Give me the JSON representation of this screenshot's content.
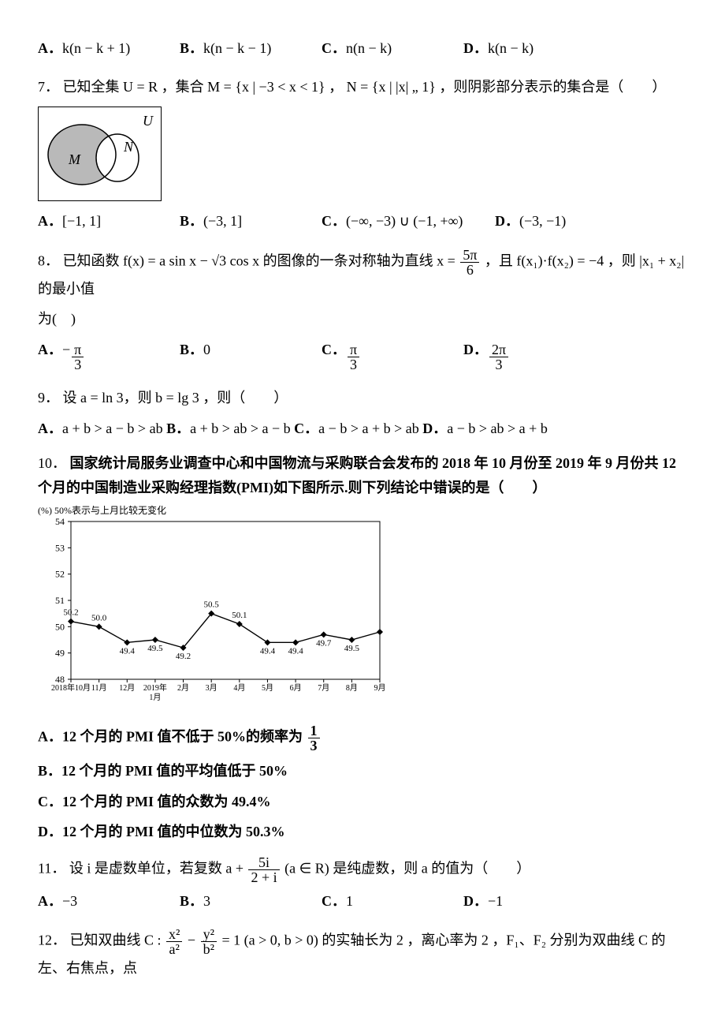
{
  "q6": {
    "opts": {
      "A": "k(n − k + 1)",
      "B": "k(n − k − 1)",
      "C": "n(n − k)",
      "D": "k(n − k)"
    },
    "opt_widths": [
      180,
      180,
      180,
      160
    ]
  },
  "q7": {
    "num": "7．",
    "stem_a": "已知全集",
    "U": "U = R",
    "stem_b": "，集合",
    "M": "M = {x | −3 < x < 1}",
    "comma": "，",
    "N": "N = {x | |x| „ 1}",
    "stem_c": "，则阴影部分表示的集合是（　　）",
    "venn": {
      "U": "U",
      "M": "M",
      "N": "N"
    },
    "opts": {
      "A": "[−1, 1]",
      "B": "(−3, 1]",
      "C": "(−∞, −3) ∪ (−1, +∞)",
      "D": "(−3, −1)"
    },
    "opt_widths": [
      180,
      180,
      220,
      140
    ]
  },
  "q8": {
    "num": "8．",
    "stem_a": "已知函数",
    "fx": "f(x) = a sin x − √3 cos x",
    "stem_b": "的图像的一条对称轴为直线",
    "xeq": "x = ",
    "frac": {
      "n": "5π",
      "d": "6"
    },
    "stem_c": "，且",
    "cond": "f(x₁)·f(x₂) = −4",
    "stem_d": "，则",
    "abs": "|x₁ + x₂|",
    "stem_e": "的最小值",
    "line2": "为(　)",
    "opts": {
      "A": {
        "pre": "−",
        "n": "π",
        "d": "3"
      },
      "B": "0",
      "C": {
        "n": "π",
        "d": "3"
      },
      "D": {
        "n": "2π",
        "d": "3"
      }
    },
    "opt_widths": [
      180,
      180,
      180,
      160
    ]
  },
  "q9": {
    "num": "9．",
    "stem": "设 a = ln 3，则 b = lg 3 ，则（　　）",
    "opts": {
      "A": "a + b > a − b > ab",
      "B": "a + b > ab > a − b",
      "C": "a − b > a + b > ab",
      "D": "a − b > ab > a + b"
    }
  },
  "q10": {
    "num": "10．",
    "stem": "国家统计局服务业调查中心和中国物流与采购联合会发布的 2018 年 10 月份至 2019 年 9 月份共 12 个月的中国制造业采购经理指数(PMI)如下图所示.则下列结论中错误的是（　　）",
    "chart": {
      "ylabel": "(%)  50%表示与上月比较无变化",
      "ylim": [
        48,
        54
      ],
      "yticks": [
        48,
        49,
        50,
        51,
        52,
        53,
        54
      ],
      "xlabels": [
        "2018年10月",
        "11月",
        "12月",
        "2019年\n1月",
        "2月",
        "3月",
        "4月",
        "5月",
        "6月",
        "7月",
        "8月",
        "9月"
      ],
      "values": [
        50.2,
        50.0,
        49.4,
        49.5,
        49.2,
        50.5,
        50.1,
        49.4,
        49.4,
        49.7,
        49.5,
        49.8
      ],
      "value_labels": [
        "50.2",
        "50.0",
        "49.4",
        "49.5",
        "49.2",
        "50.5",
        "50.1",
        "49.4",
        "49.4",
        "49.7",
        "49.5",
        "49.8"
      ],
      "line_color": "#000000",
      "marker": "diamond",
      "axis_color": "#000000",
      "bg_color": "#ffffff",
      "font_size": 12
    },
    "optA_a": "A．12 个月的 PMI 值不低于 50%的频率为",
    "optA_frac": {
      "n": "1",
      "d": "3"
    },
    "optB": "B．12 个月的 PMI 值的平均值低于 50%",
    "optC": "C．12 个月的 PMI 值的众数为 49.4%",
    "optD": "D．12 个月的 PMI 值的中位数为 50.3%"
  },
  "q11": {
    "num": "11．",
    "stem_a": "设 i 是虚数单位，若复数",
    "expr_a": "a + ",
    "frac": {
      "n": "5i",
      "d": "2 + i"
    },
    "expr_b": "(a ∈ R)",
    "stem_b": " 是纯虚数，则 a 的值为（　　）",
    "opts": {
      "A": "−3",
      "B": "3",
      "C": "1",
      "D": "−1"
    },
    "opt_widths": [
      180,
      180,
      180,
      160
    ]
  },
  "q12": {
    "num": "12．",
    "stem_a": "已知双曲线",
    "C": "C : ",
    "f1": {
      "n": "x²",
      "d": "a²"
    },
    "minus": " − ",
    "f2": {
      "n": "y²",
      "d": "b²"
    },
    "eq": " = 1 (a > 0, b > 0)",
    "stem_b": " 的实轴长为 2 ，离心率为 2 ，F₁、F₂ 分别为双曲线 C 的左、右焦点，点"
  }
}
